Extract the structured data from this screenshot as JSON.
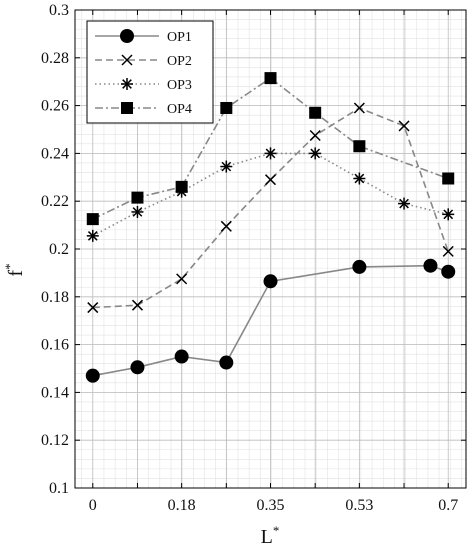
{
  "chart_data": {
    "type": "line",
    "xlabel": "L",
    "xlabel_sup": "*",
    "ylabel": "f",
    "ylabel_sup": "*",
    "xlim": [
      -0.035,
      0.735
    ],
    "ylim": [
      0.1,
      0.3
    ],
    "xticks": [
      0,
      0.088,
      0.175,
      0.263,
      0.35,
      0.438,
      0.525,
      0.613,
      0.7
    ],
    "xtick_labels": [
      "0",
      "",
      "0.18",
      "",
      "0.35",
      "",
      "0.53",
      "",
      "0.7"
    ],
    "yticks": [
      0.1,
      0.12,
      0.14,
      0.16,
      0.18,
      0.2,
      0.22,
      0.24,
      0.26,
      0.28,
      0.3
    ],
    "ytick_labels": [
      "0.1",
      "0.12",
      "0.14",
      "0.16",
      "0.18",
      "0.2",
      "0.22",
      "0.24",
      "0.26",
      "0.28",
      "0.3"
    ],
    "grid": true,
    "minor_grid": true,
    "legend_position": "top-left",
    "series": [
      {
        "name": "OP1",
        "marker": "circle",
        "dash": "solid",
        "color": "#888888",
        "x": [
          0,
          0.088,
          0.175,
          0.263,
          0.35,
          0.525,
          0.665,
          0.7
        ],
        "y": [
          0.147,
          0.1505,
          0.155,
          0.1525,
          0.1865,
          0.1925,
          0.193,
          0.1905
        ]
      },
      {
        "name": "OP2",
        "marker": "x",
        "dash": "dashed",
        "color": "#888888",
        "x": [
          0,
          0.088,
          0.175,
          0.263,
          0.35,
          0.438,
          0.525,
          0.613,
          0.7
        ],
        "y": [
          0.1755,
          0.1765,
          0.1875,
          0.2095,
          0.229,
          0.2475,
          0.259,
          0.2515,
          0.199
        ]
      },
      {
        "name": "OP3",
        "marker": "asterisk",
        "dash": "dotted",
        "color": "#888888",
        "x": [
          0,
          0.088,
          0.175,
          0.263,
          0.35,
          0.438,
          0.525,
          0.613,
          0.7
        ],
        "y": [
          0.2055,
          0.2155,
          0.224,
          0.2345,
          0.24,
          0.24,
          0.2295,
          0.219,
          0.2145
        ]
      },
      {
        "name": "OP4",
        "marker": "square",
        "dash": "dashdot",
        "color": "#888888",
        "x": [
          0,
          0.088,
          0.175,
          0.263,
          0.35,
          0.438,
          0.525,
          0.7
        ],
        "y": [
          0.2125,
          0.2215,
          0.226,
          0.259,
          0.2715,
          0.257,
          0.243,
          0.2295
        ]
      }
    ]
  }
}
